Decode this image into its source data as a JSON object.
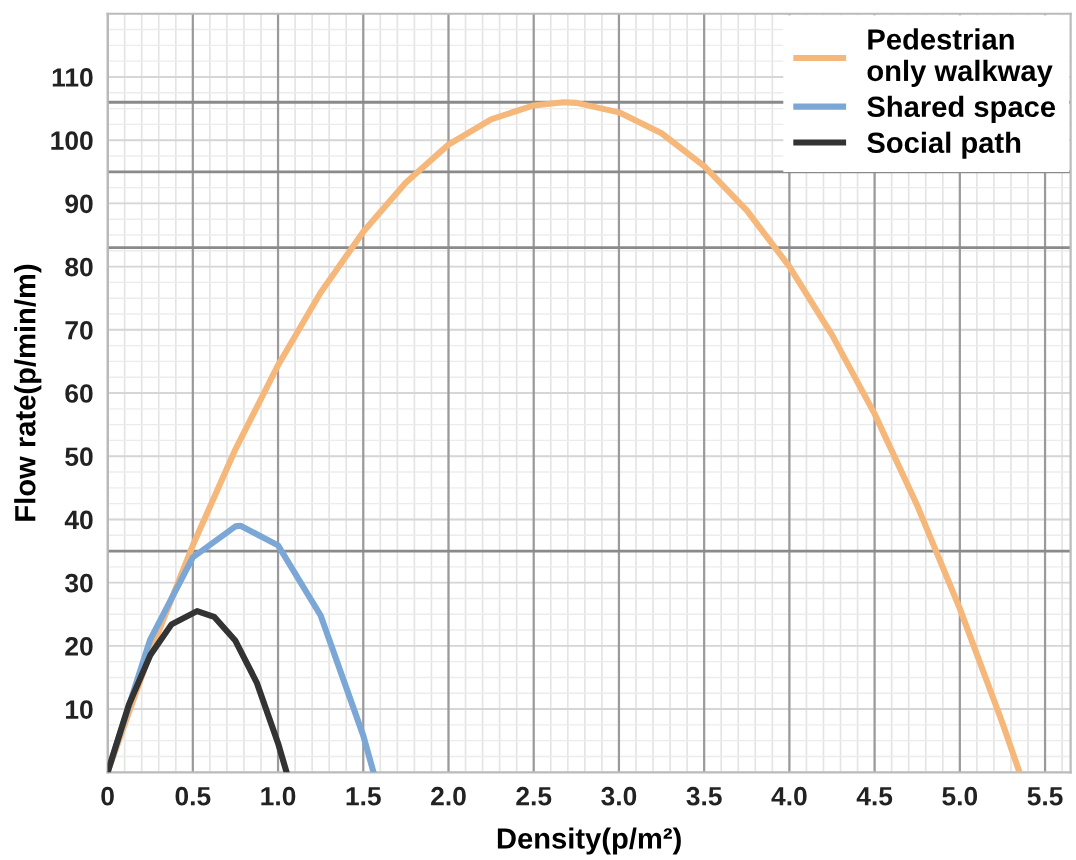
{
  "chart_data": {
    "type": "line",
    "xlabel": "Density(p/m²)",
    "ylabel": "Flow rate(p/min/m)",
    "xlim": [
      0,
      5.65
    ],
    "ylim": [
      0,
      120
    ],
    "xticks": [
      0,
      0.5,
      {
        "value": 1.0,
        "label": "1.0"
      },
      1.5,
      {
        "value": 2.0,
        "label": "2.0"
      },
      2.5,
      {
        "value": 3.0,
        "label": "3.0"
      },
      3.5,
      {
        "value": 4.0,
        "label": "4.0"
      },
      4.5,
      {
        "value": 5.0,
        "label": "5.0"
      },
      5.5
    ],
    "yticks": [
      10,
      20,
      30,
      40,
      50,
      60,
      70,
      80,
      90,
      100,
      110
    ],
    "grid": true,
    "legend": "top right",
    "marker": "none",
    "line_style": "solid",
    "ref_lines": [
      {
        "axis": "y",
        "value": 35,
        "color": "#8a8a8a"
      },
      {
        "axis": "y",
        "value": 83,
        "color": "#8a8a8a"
      },
      {
        "axis": "y",
        "value": 95,
        "color": "#8a8a8a"
      },
      {
        "axis": "y",
        "value": 106,
        "color": "#8a8a8a"
      }
    ],
    "series": [
      {
        "name": "Pedestrian\nonly walkway",
        "color": "#f5b77a",
        "x": [
          0,
          0.25,
          0.5,
          0.75,
          1.0,
          1.25,
          1.5,
          1.75,
          2.0,
          2.25,
          2.5,
          2.675,
          2.75,
          3.0,
          3.25,
          3.5,
          3.75,
          4.0,
          4.25,
          4.5,
          4.75,
          5.0,
          5.25,
          5.35
        ],
        "values": [
          0,
          18.9,
          35.9,
          51.1,
          64.4,
          75.9,
          85.5,
          93.3,
          99.3,
          103.3,
          105.5,
          106,
          105.9,
          104.4,
          101.1,
          95.9,
          88.9,
          80.0,
          69.2,
          56.7,
          42.2,
          25.9,
          7.8,
          0
        ]
      },
      {
        "name": "Shared space",
        "color": "#7ba7d6",
        "x": [
          0,
          0.25,
          0.5,
          0.75,
          0.78,
          1.0,
          1.25,
          1.5,
          1.56
        ],
        "values": [
          0,
          21.0,
          34.0,
          38.9,
          39,
          35.9,
          24.8,
          5.8,
          0
        ]
      },
      {
        "name": "Social path",
        "color": "#333333",
        "x": [
          0,
          0.125,
          0.25,
          0.375,
          0.525,
          0.625,
          0.75,
          0.875,
          1.0,
          1.05
        ],
        "values": [
          0,
          10.7,
          18.5,
          23.4,
          25.5,
          24.6,
          20.8,
          14.2,
          4.6,
          0
        ]
      }
    ]
  }
}
